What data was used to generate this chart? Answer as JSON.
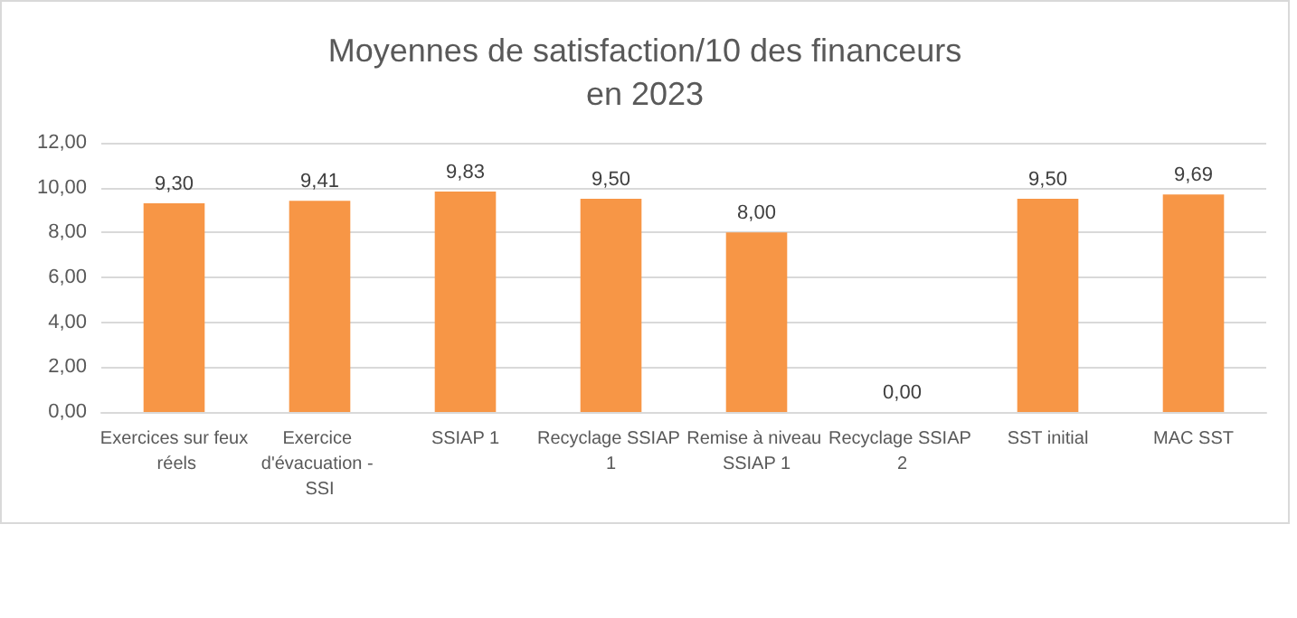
{
  "chart_data": {
    "type": "bar",
    "title": "Moyennes de satisfaction/10 des financeurs\nen 2023",
    "categories": [
      "Exercices sur feux réels",
      "Exercice d'évacuation - SSI",
      "SSIAP 1",
      "Recyclage SSIAP 1",
      "Remise à niveau SSIAP 1",
      "Recyclage SSIAP 2",
      "SST initial",
      "MAC SST"
    ],
    "values": [
      9.3,
      9.41,
      9.83,
      9.5,
      8,
      0,
      9.5,
      9.69
    ],
    "value_labels": [
      "9,30",
      "9,41",
      "9,83",
      "9,50",
      "8,00",
      "0,00",
      "9,50",
      "9,69"
    ],
    "color": "#f79646",
    "ylim": [
      0,
      12
    ],
    "yticks": [
      {
        "value": 0,
        "label": "0,00"
      },
      {
        "value": 2,
        "label": "2,00"
      },
      {
        "value": 4,
        "label": "4,00"
      },
      {
        "value": 6,
        "label": "6,00"
      },
      {
        "value": 8,
        "label": "8,00"
      },
      {
        "value": 10,
        "label": "10,00"
      },
      {
        "value": 12,
        "label": "12,00"
      }
    ],
    "grid": true
  }
}
